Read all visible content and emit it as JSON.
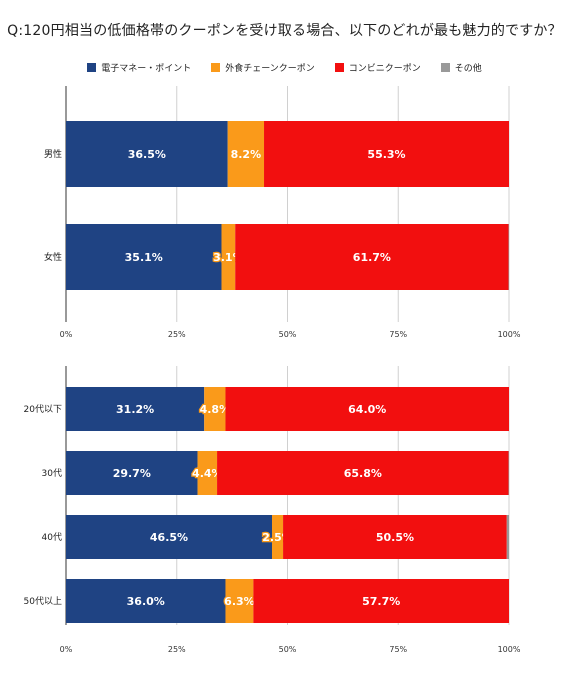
{
  "title": "Q:120円相当の低価格帯のクーポンを受け取る場合、以下のどれが最も魅力的ですか？",
  "legend": [
    {
      "name": "電子マネー・ポイント",
      "color": "#1f4383"
    },
    {
      "name": "外食チェーンクーポン",
      "color": "#fa9a1a"
    },
    {
      "name": "コンビニクーポン",
      "color": "#f20f0f"
    },
    {
      "name": "その他",
      "color": "#999999"
    }
  ],
  "chart_data": [
    {
      "type": "bar",
      "orientation": "horizontal",
      "stacked": true,
      "categories": [
        "男性",
        "女性"
      ],
      "series": [
        {
          "name": "電子マネー・ポイント",
          "values": [
            36.5,
            35.1
          ],
          "labels": [
            "36.5%",
            "35.1%"
          ]
        },
        {
          "name": "外食チェーンクーポン",
          "values": [
            8.2,
            3.1
          ],
          "labels": [
            "8.2%",
            "3.1%"
          ]
        },
        {
          "name": "コンビニクーポン",
          "values": [
            55.3,
            61.7
          ],
          "labels": [
            "55.3%",
            "61.7%"
          ]
        },
        {
          "name": "その他",
          "values": [
            0.0,
            0.1
          ],
          "labels": [
            "",
            ""
          ]
        }
      ],
      "xlim": [
        0,
        100
      ],
      "xticks": [
        "0%",
        "25%",
        "50%",
        "75%",
        "100%"
      ],
      "grid": true
    },
    {
      "type": "bar",
      "orientation": "horizontal",
      "stacked": true,
      "categories": [
        "20代以下",
        "30代",
        "40代",
        "50代以上"
      ],
      "series": [
        {
          "name": "電子マネー・ポイント",
          "values": [
            31.2,
            29.7,
            46.5,
            36.0
          ],
          "labels": [
            "31.2%",
            "29.7%",
            "46.5%",
            "36.0%"
          ]
        },
        {
          "name": "外食チェーンクーポン",
          "values": [
            4.8,
            4.4,
            2.5,
            6.3
          ],
          "labels": [
            "4.8%",
            "4.4%",
            "2.5%",
            "6.3%"
          ]
        },
        {
          "name": "コンビニクーポン",
          "values": [
            64.0,
            65.8,
            50.5,
            57.7
          ],
          "labels": [
            "64.0%",
            "65.8%",
            "50.5%",
            "57.7%"
          ]
        },
        {
          "name": "その他",
          "values": [
            0.0,
            0.1,
            0.5,
            0.0
          ],
          "labels": [
            "",
            "",
            "",
            ""
          ]
        }
      ],
      "xlim": [
        0,
        100
      ],
      "xticks": [
        "0%",
        "25%",
        "50%",
        "75%",
        "100%"
      ],
      "grid": true
    }
  ]
}
